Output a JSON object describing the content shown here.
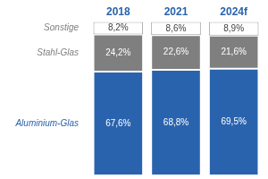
{
  "chart_data": {
    "type": "bar",
    "stacked": true,
    "categories": [
      "2018",
      "2021",
      "2024f"
    ],
    "series": [
      {
        "name": "Aluminium-Glas",
        "color": "#2a63ad",
        "values": [
          67.6,
          68.8,
          69.5
        ],
        "value_labels": [
          "67,6%",
          "68,8%",
          "69,5%"
        ]
      },
      {
        "name": "Stahl-Glas",
        "color": "#7f7f7f",
        "values": [
          24.2,
          22.6,
          21.6
        ],
        "value_labels": [
          "24,2%",
          "22,6%",
          "21,6%"
        ]
      },
      {
        "name": "Sonstige",
        "color": "#ffffff",
        "values": [
          8.2,
          8.6,
          8.9
        ],
        "value_labels": [
          "8,2%",
          "8,6%",
          "8,9%"
        ]
      }
    ],
    "ylim": [
      0,
      100
    ],
    "data_labels": true,
    "tick_labels": "x",
    "grid": false
  }
}
